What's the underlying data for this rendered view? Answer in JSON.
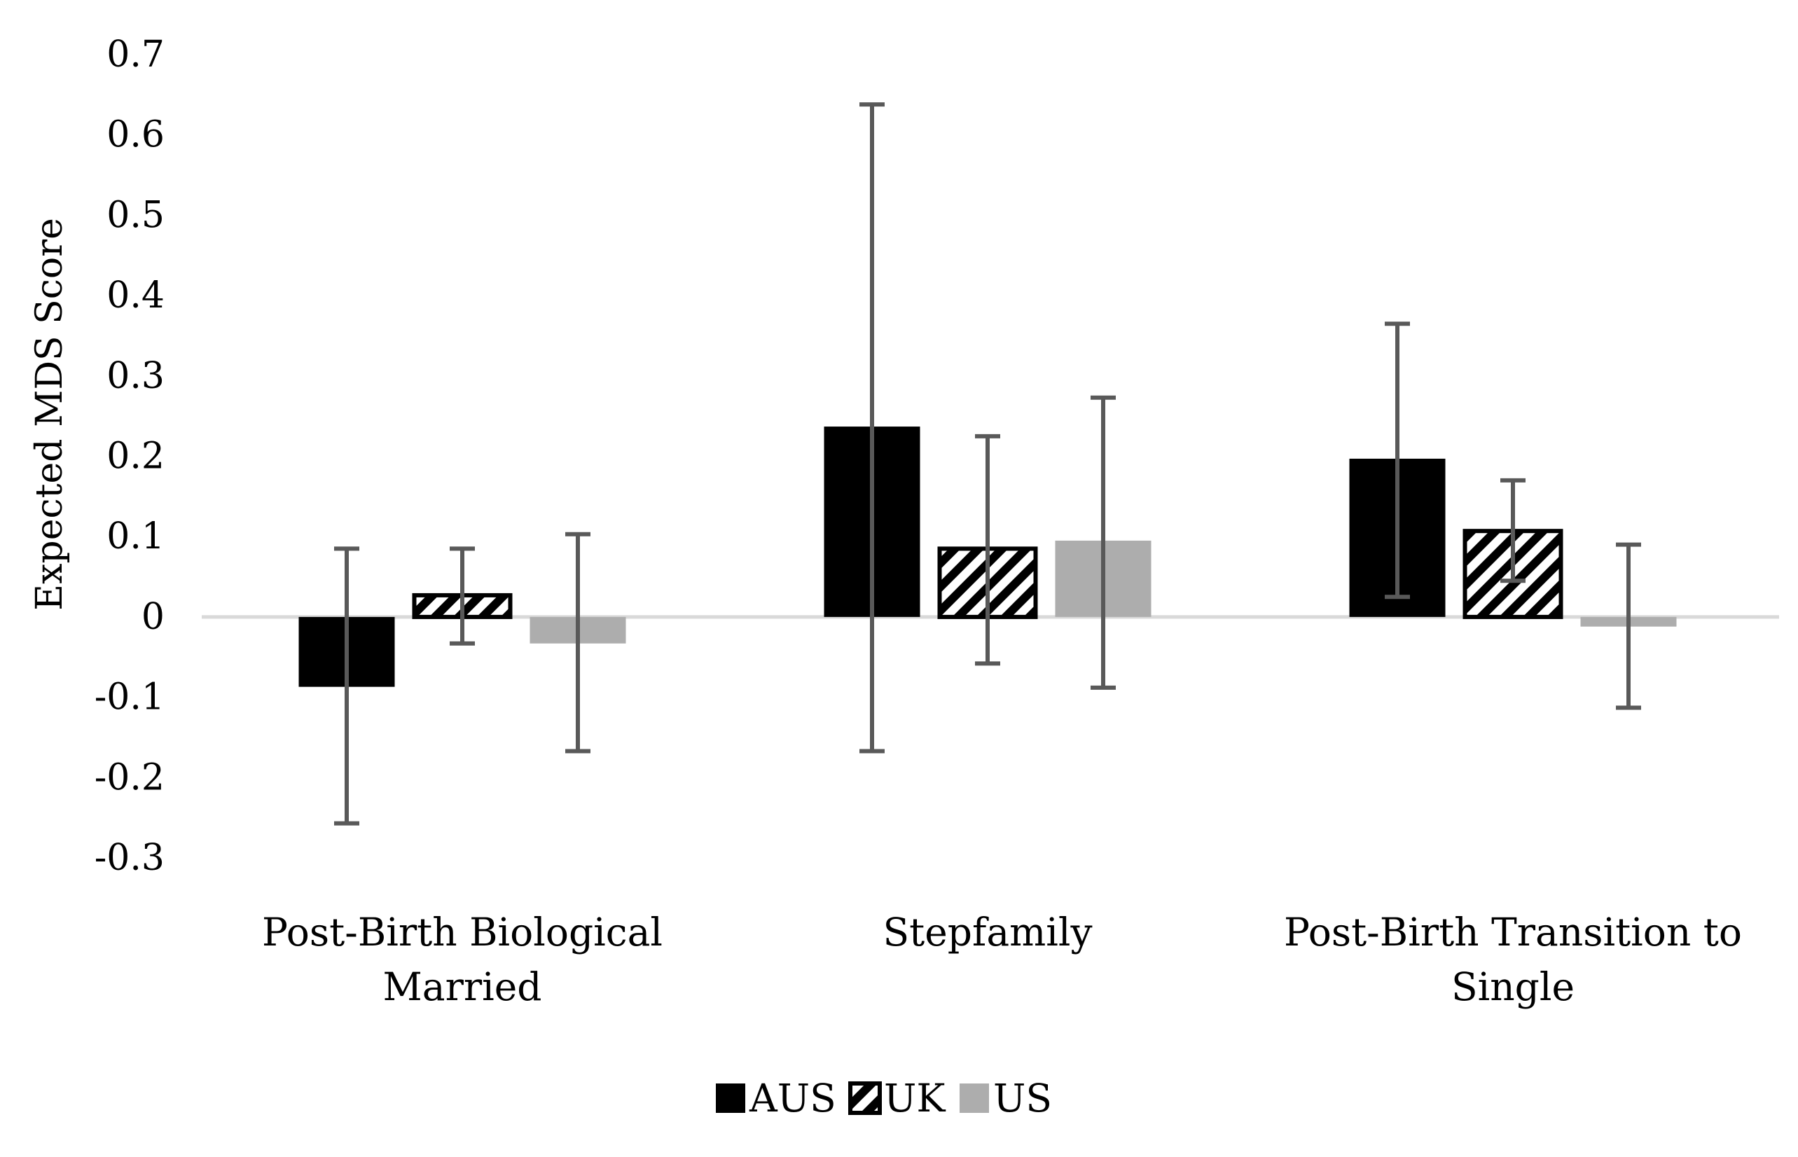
{
  "chart_data": {
    "type": "bar",
    "title": "",
    "xlabel": "",
    "ylabel": "Expected MDS Score",
    "ylim": [
      -0.3,
      0.7
    ],
    "yticks": [
      "0.7",
      "0.6",
      "0.5",
      "0.4",
      "0.3",
      "0.2",
      "0.1",
      "0",
      "-0.1",
      "-0.2",
      "-0.3"
    ],
    "categories": [
      [
        "Post-Birth Biological",
        "Married"
      ],
      [
        "Stepfamily"
      ],
      [
        "Post-Birth Transition to",
        "Single"
      ]
    ],
    "series": [
      {
        "name": "AUS",
        "color": "#000000",
        "pattern": "solid",
        "values": [
          -0.087,
          0.237,
          0.197
        ],
        "err_low": [
          -0.257,
          -0.167,
          0.025
        ],
        "err_high": [
          0.085,
          0.638,
          0.365
        ]
      },
      {
        "name": "UK",
        "color": "#000000",
        "pattern": "diagonal-stripes",
        "values": [
          0.027,
          0.085,
          0.107
        ],
        "err_low": [
          -0.033,
          -0.058,
          0.045
        ],
        "err_high": [
          0.085,
          0.225,
          0.17
        ]
      },
      {
        "name": "US",
        "color": "#adadad",
        "pattern": "solid",
        "values": [
          -0.033,
          0.095,
          -0.012
        ],
        "err_low": [
          -0.167,
          -0.088,
          -0.113
        ],
        "err_high": [
          0.103,
          0.273,
          0.09
        ]
      }
    ],
    "errorbar_color": "#595959",
    "zero_line_color": "#d9d9d9",
    "grid": false,
    "legend_position": "bottom"
  }
}
